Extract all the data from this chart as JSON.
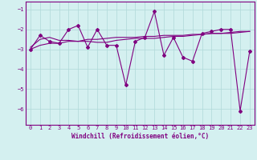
{
  "xlabel": "Windchill (Refroidissement éolien,°C)",
  "x_values": [
    0,
    1,
    2,
    3,
    4,
    5,
    6,
    7,
    8,
    9,
    10,
    11,
    12,
    13,
    14,
    15,
    16,
    17,
    18,
    19,
    20,
    21,
    22,
    23
  ],
  "y_main": [
    -3.0,
    -2.3,
    -2.6,
    -2.7,
    -2.0,
    -1.8,
    -2.9,
    -2.0,
    -2.8,
    -2.8,
    -4.8,
    -2.6,
    -2.4,
    -1.1,
    -3.3,
    -2.4,
    -3.4,
    -3.6,
    -2.2,
    -2.1,
    -2.0,
    -2.0,
    -6.1,
    -3.1
  ],
  "y_trend1": [
    -2.9,
    -2.5,
    -2.4,
    -2.55,
    -2.55,
    -2.6,
    -2.6,
    -2.65,
    -2.65,
    -2.55,
    -2.5,
    -2.45,
    -2.45,
    -2.45,
    -2.4,
    -2.35,
    -2.35,
    -2.3,
    -2.25,
    -2.2,
    -2.2,
    -2.15,
    -2.1,
    -2.1
  ],
  "y_trend2": [
    -3.0,
    -2.8,
    -2.7,
    -2.7,
    -2.6,
    -2.6,
    -2.5,
    -2.5,
    -2.45,
    -2.4,
    -2.4,
    -2.4,
    -2.35,
    -2.35,
    -2.3,
    -2.3,
    -2.3,
    -2.25,
    -2.25,
    -2.2,
    -2.2,
    -2.2,
    -2.15,
    -2.1
  ],
  "line_color": "#800080",
  "bg_color": "#d4f0f0",
  "grid_color": "#b0d8d8",
  "ylim": [
    -6.8,
    -0.6
  ],
  "yticks": [
    -6,
    -5,
    -4,
    -3,
    -2,
    -1
  ],
  "marker": "D",
  "markersize": 2.0,
  "linewidth": 0.8,
  "tick_fontsize": 5.0,
  "xlabel_fontsize": 5.5
}
